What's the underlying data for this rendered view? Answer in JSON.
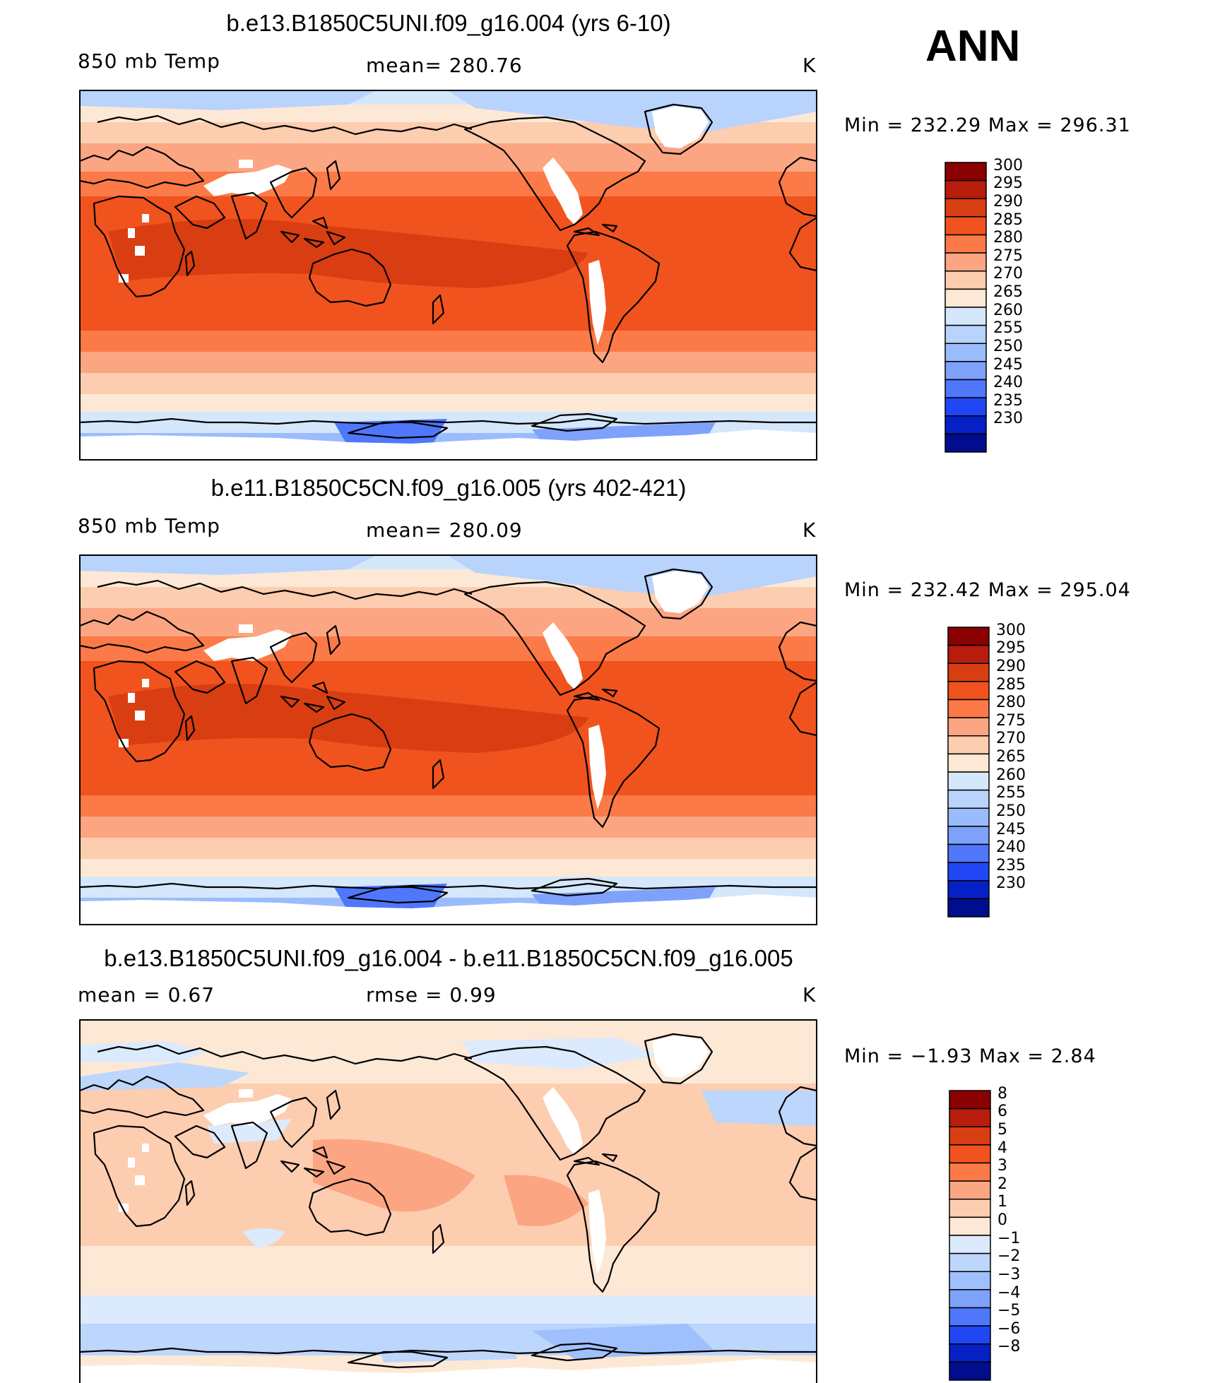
{
  "season_label": "ANN",
  "panels": [
    {
      "title": "b.e13.B1850C5UNI.f09_g16.004 (yrs 6-10)",
      "variable": "850 mb Temp",
      "stat1": "mean=  280.76",
      "stat2": "",
      "units": "K",
      "minmax": "Min  =  232.29  Max  =  296.31",
      "colorbar_labels": [
        "300",
        "295",
        "290",
        "285",
        "280",
        "275",
        "270",
        "265",
        "260",
        "255",
        "250",
        "245",
        "240",
        "235",
        "230"
      ]
    },
    {
      "title": "b.e11.B1850C5CN.f09_g16.005 (yrs 402-421)",
      "variable": "850 mb Temp",
      "stat1": "mean=  280.09",
      "stat2": "",
      "units": "K",
      "minmax": "Min  =  232.42  Max  =  295.04",
      "colorbar_labels": [
        "300",
        "295",
        "290",
        "285",
        "280",
        "275",
        "270",
        "265",
        "260",
        "255",
        "250",
        "245",
        "240",
        "235",
        "230"
      ]
    },
    {
      "title": "b.e13.B1850C5UNI.f09_g16.004 - b.e11.B1850C5CN.f09_g16.005",
      "variable": "mean  =     0.67",
      "stat1": "rmse  =     0.99",
      "stat2": "",
      "units": "K",
      "minmax": "Min  =    −1.93  Max  =     2.84",
      "colorbar_labels": [
        "8",
        "6",
        "5",
        "4",
        "3",
        "2",
        "1",
        "0",
        "−1",
        "−2",
        "−3",
        "−4",
        "−5",
        "−6",
        "−8"
      ]
    }
  ],
  "colors": {
    "abs_scale": [
      "#8b0000",
      "#b71c0c",
      "#d93d12",
      "#f0531e",
      "#fb7a47",
      "#fca582",
      "#fdcdb0",
      "#fde8d6",
      "#d4e7fb",
      "#b8d3fc",
      "#9bbcfc",
      "#7ea2fc",
      "#4f77fb",
      "#2146f4",
      "#0520c4",
      "#000d8c"
    ],
    "diff_scale": [
      "#8b0000",
      "#b71c0c",
      "#d93d12",
      "#f0531e",
      "#fb7a47",
      "#fca582",
      "#fdcdb0",
      "#fde8d6",
      "#dbeafd",
      "#bcd6fc",
      "#9fc0fc",
      "#7ea2fc",
      "#4f77fb",
      "#2146f4",
      "#0520c4",
      "#000d8c"
    ]
  }
}
